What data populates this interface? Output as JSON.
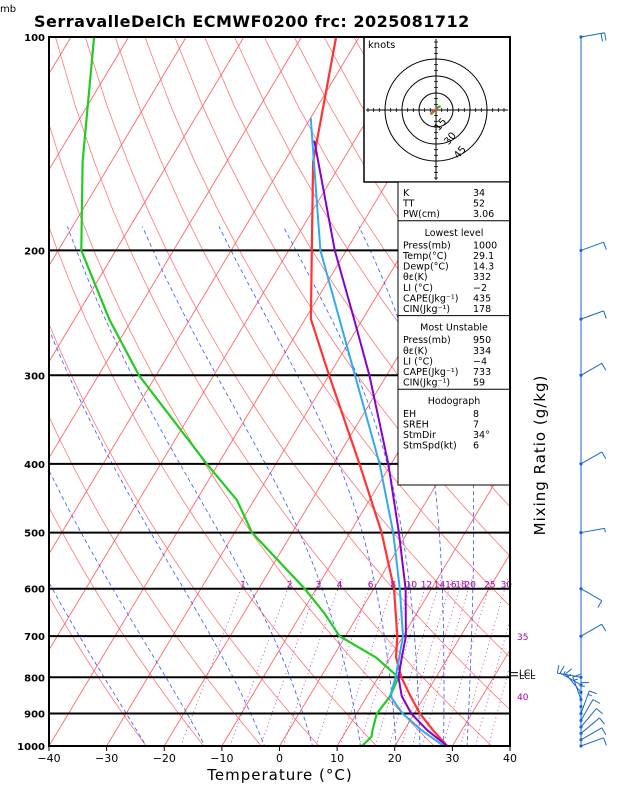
{
  "title": "SerravalleDelCh  ECMWF0200  frc: 2025081712",
  "units": {
    "pressure": "mb",
    "wind": "knots"
  },
  "chart_data": {
    "type": "skewt",
    "xlabel": "Temperature (°C)",
    "ylabel_right": "Mixing Ratio (g/kg)",
    "xlim": [
      -40,
      40
    ],
    "ylim": [
      1000,
      100
    ],
    "x_ticks": [
      "−40",
      "−30",
      "−20",
      "−10",
      "0",
      "10",
      "20",
      "30",
      "40"
    ],
    "x_tick_values": [
      -40,
      -30,
      -20,
      -10,
      0,
      10,
      20,
      30,
      40
    ],
    "pressure_levels": [
      100,
      200,
      300,
      400,
      500,
      600,
      700,
      800,
      900,
      1000
    ],
    "mixing_ratio_labels": [
      "1",
      "2",
      "3",
      "4",
      "6",
      "8",
      "10",
      "12",
      "14",
      "16",
      "18",
      "20",
      "25",
      "30",
      "35",
      "40"
    ],
    "mixing_ratio_values": [
      1,
      2,
      3,
      4,
      6,
      8,
      10,
      12,
      14,
      16,
      18,
      20,
      25,
      30,
      35,
      40
    ],
    "lcl_labels": [
      "LCL",
      "LCL"
    ],
    "lcl_pressures": [
      788,
      796
    ],
    "temperature": {
      "p": [
        1000,
        950,
        900,
        850,
        800,
        750,
        700,
        600,
        500,
        400,
        300,
        250,
        200,
        150,
        100
      ],
      "t": [
        29.1,
        25.0,
        21.0,
        17.5,
        14.0,
        11.0,
        9.0,
        3.5,
        -4.5,
        -15.5,
        -30.0,
        -39.0,
        -46.0,
        -55.0,
        -64.0
      ],
      "color": "#ff3333"
    },
    "dewpoint": {
      "p": [
        1000,
        970,
        950,
        900,
        850,
        800,
        750,
        700,
        650,
        600,
        500,
        450,
        400,
        300,
        250,
        200,
        150,
        100
      ],
      "td": [
        14.3,
        15.0,
        14.5,
        13.5,
        14.0,
        13.5,
        7.5,
        -1.0,
        -6.0,
        -12.0,
        -27.0,
        -33.0,
        -42.0,
        -63.0,
        -74.0,
        -86.0,
        -95.0,
        -106.0
      ],
      "color": "#22cc22"
    },
    "parcel": {
      "p": [
        1000,
        950,
        900,
        850,
        800,
        750,
        700,
        600,
        500,
        400,
        300,
        250,
        200,
        140
      ],
      "t": [
        29.1,
        24.0,
        19.5,
        16.0,
        13.5,
        12.0,
        10.5,
        5.5,
        -1.5,
        -10.5,
        -23.0,
        -31.5,
        -42.0,
        -57.0
      ],
      "color": "#8800cc"
    },
    "virtual_temperature": {
      "p": [
        1000,
        950,
        900,
        850,
        800,
        700,
        600,
        500,
        400,
        300,
        200,
        130
      ],
      "t": [
        28.5,
        23.0,
        18.0,
        14.0,
        13.0,
        10.0,
        4.5,
        -2.5,
        -12.0,
        -25.5,
        -44.5,
        -60.0
      ],
      "color": "#33aaee"
    },
    "wind_barbs": {
      "p": [
        1000,
        980,
        960,
        940,
        920,
        900,
        880,
        860,
        840,
        820,
        800,
        700,
        600,
        500,
        400,
        300,
        250,
        200,
        100
      ],
      "dir_deg": [
        250,
        240,
        230,
        220,
        210,
        200,
        180,
        160,
        140,
        120,
        100,
        240,
        300,
        260,
        240,
        240,
        250,
        250,
        260
      ],
      "speed_kt": [
        10,
        10,
        10,
        10,
        10,
        15,
        15,
        15,
        15,
        15,
        10,
        10,
        10,
        5,
        10,
        10,
        10,
        10,
        20
      ]
    },
    "hodograph": {
      "label": "knots",
      "ring_labels": [
        "15",
        "30",
        "45"
      ],
      "ring_values": [
        15,
        30,
        45
      ],
      "points_kt": [
        [
          -4,
          -3
        ],
        [
          -3,
          -2
        ],
        [
          -2,
          -1
        ],
        [
          0,
          1
        ],
        [
          1,
          2
        ],
        [
          3,
          3
        ]
      ]
    }
  },
  "indices": {
    "rows": [
      {
        "label": "K",
        "value": "34"
      },
      {
        "label": "TT",
        "value": "52"
      },
      {
        "label": "PW(cm)",
        "value": "3.06"
      }
    ],
    "lowest_level": {
      "header": "Lowest level",
      "rows": [
        {
          "label": "Press(mb)",
          "value": "1000"
        },
        {
          "label": "Temp(°C)",
          "value": "29.1"
        },
        {
          "label": "Dewp(°C)",
          "value": "14.3"
        },
        {
          "label": "θε(K)",
          "value": "332"
        },
        {
          "label": "LI (°C)",
          "value": "−2"
        },
        {
          "label": "CAPE(Jkg⁻¹)",
          "value": "435"
        },
        {
          "label": "CIN(Jkg⁻¹)",
          "value": "178"
        }
      ]
    },
    "most_unstable": {
      "header": "Most Unstable",
      "rows": [
        {
          "label": "Press(mb)",
          "value": "950"
        },
        {
          "label": "θε(K)",
          "value": "334"
        },
        {
          "label": "LI (°C)",
          "value": "−4"
        },
        {
          "label": "CAPE(Jkg⁻¹)",
          "value": "733"
        },
        {
          "label": "CIN(Jkg⁻¹)",
          "value": "59"
        }
      ]
    },
    "hodograph": {
      "header": "Hodograph",
      "rows": [
        {
          "label": "EH",
          "value": "8"
        },
        {
          "label": "SREH",
          "value": "7"
        },
        {
          "label": "StmDir",
          "value": "34°"
        },
        {
          "label": "StmSpd(kt)",
          "value": "6"
        }
      ]
    }
  },
  "colors": {
    "isotherm": "#ff5555",
    "dry_adiabat": "#ff6666",
    "moist_adiabat": "#3355ff",
    "mixing_ratio": "#aa33aa",
    "mixing_label": "#aa00aa",
    "axis": "#000000"
  }
}
